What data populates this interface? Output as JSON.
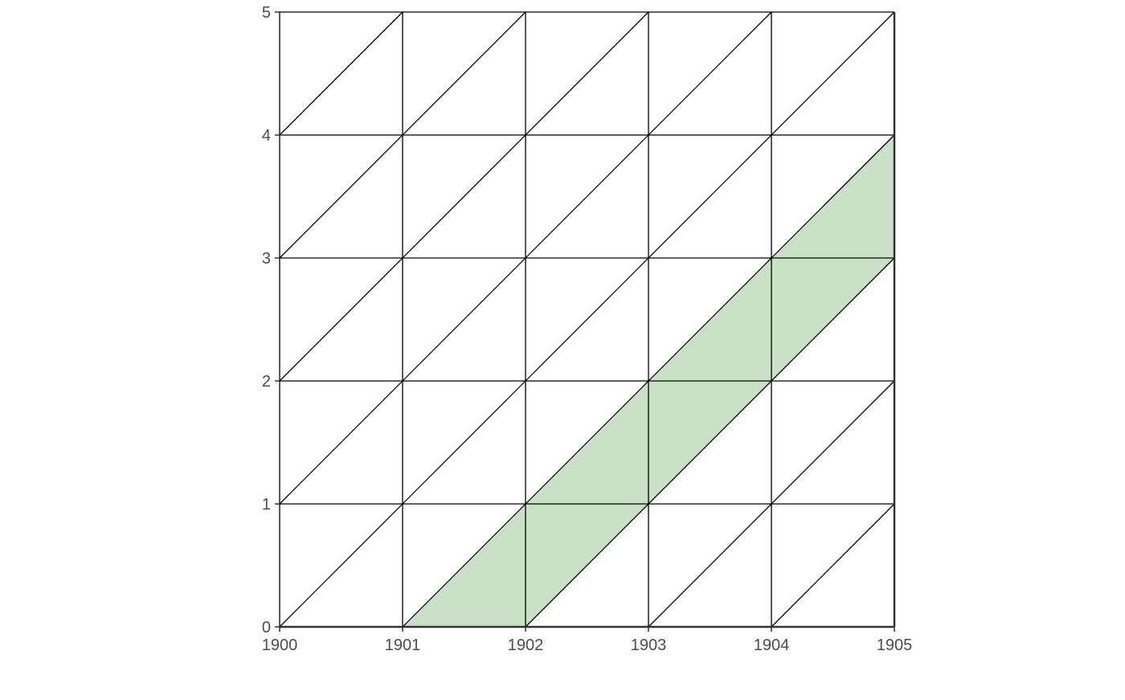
{
  "chart_data": {
    "type": "area",
    "title": "",
    "xlabel": "",
    "ylabel": "",
    "x_ticks": [
      "1900",
      "1901",
      "1902",
      "1903",
      "1904",
      "1905"
    ],
    "y_ticks": [
      "0",
      "1",
      "2",
      "3",
      "4",
      "5"
    ],
    "xlim": [
      1900,
      1905
    ],
    "ylim": [
      0,
      5
    ],
    "grid": true,
    "diagonal_lines": true,
    "band_color": "#9fc89a",
    "band_opacity": 0.55,
    "series": [
      {
        "type": "area-band",
        "x": [
          1901,
          1902,
          1903,
          1904,
          1905
        ],
        "lower": [
          0,
          0,
          1,
          2,
          3
        ],
        "upper": [
          0,
          1,
          2,
          3,
          4
        ]
      }
    ]
  }
}
